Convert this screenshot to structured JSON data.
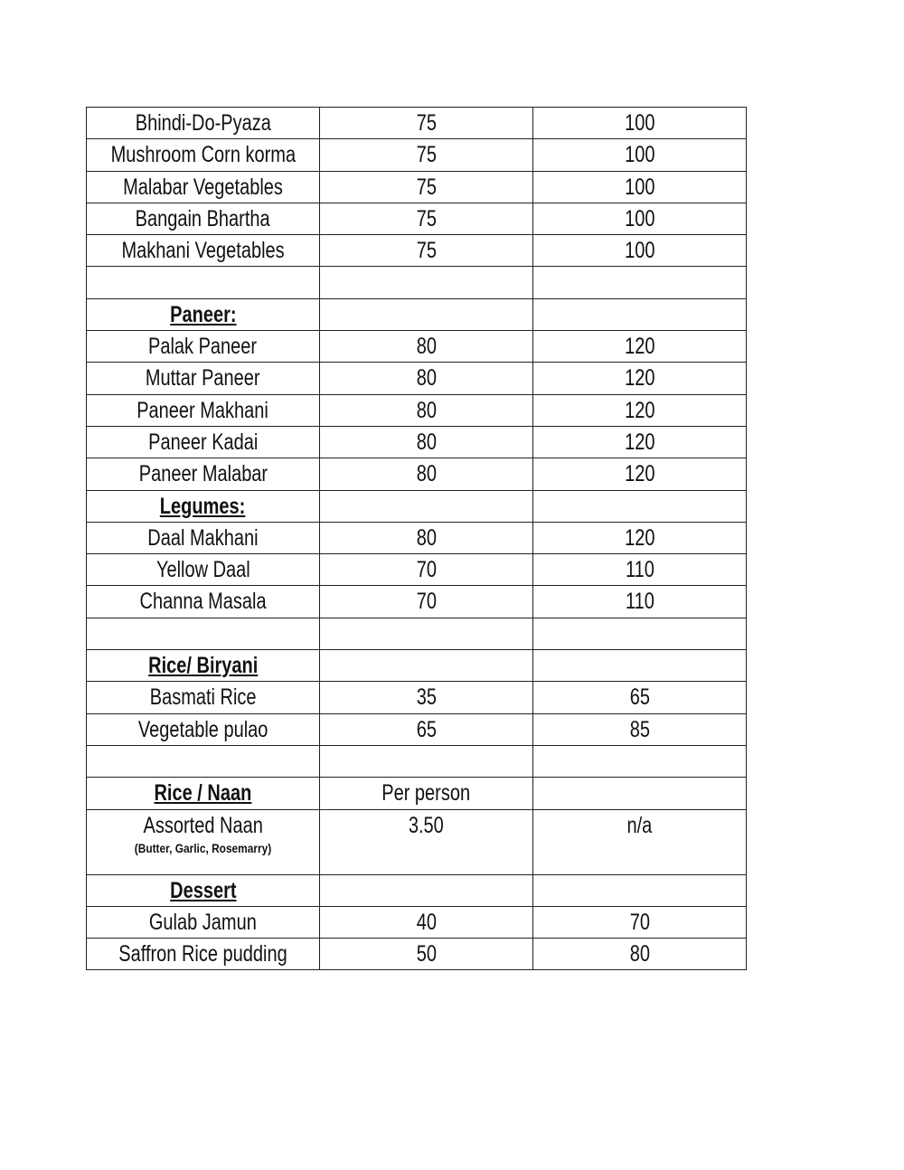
{
  "rows": [
    {
      "name": "Bhindi-Do-Pyaza",
      "c2": "75",
      "c3": "100"
    },
    {
      "name": "Mushroom Corn korma",
      "c2": "75",
      "c3": "100"
    },
    {
      "name": "Malabar Vegetables",
      "c2": "75",
      "c3": "100"
    },
    {
      "name": "Bangain Bhartha",
      "c2": "75",
      "c3": "100"
    },
    {
      "name": "Makhani Vegetables",
      "c2": "75",
      "c3": "100"
    },
    {
      "name": "",
      "c2": "",
      "c3": ""
    },
    {
      "name": "Paneer:",
      "c2": "",
      "c3": "",
      "heading": true
    },
    {
      "name": "Palak Paneer",
      "c2": "80",
      "c3": "120"
    },
    {
      "name": "Muttar Paneer",
      "c2": "80",
      "c3": "120"
    },
    {
      "name": "Paneer Makhani",
      "c2": "80",
      "c3": "120"
    },
    {
      "name": "Paneer Kadai",
      "c2": "80",
      "c3": "120"
    },
    {
      "name": "Paneer Malabar",
      "c2": "80",
      "c3": "120"
    },
    {
      "name": "Legumes:",
      "c2": "",
      "c3": "",
      "heading": true
    },
    {
      "name": "Daal Makhani",
      "c2": "80",
      "c3": "120"
    },
    {
      "name": "Yellow Daal",
      "c2": "70",
      "c3": "110"
    },
    {
      "name": "Channa Masala",
      "c2": "70",
      "c3": "110"
    },
    {
      "name": "",
      "c2": "",
      "c3": ""
    },
    {
      "name": "Rice/ Biryani",
      "c2": "",
      "c3": "",
      "heading": true
    },
    {
      "name": "Basmati Rice",
      "c2": "35",
      "c3": "65"
    },
    {
      "name": "Vegetable pulao",
      "c2": "65",
      "c3": "85"
    },
    {
      "name": "",
      "c2": "",
      "c3": ""
    },
    {
      "name": "Rice / Naan",
      "c2": "Per person",
      "c3": "",
      "heading": true
    },
    {
      "name": "Assorted Naan",
      "note": "(Butter, Garlic, Rosemarry)",
      "c2": "3.50",
      "c3": "n/a"
    },
    {
      "name": "Dessert",
      "c2": "",
      "c3": "",
      "heading": true
    },
    {
      "name": "Gulab Jamun",
      "c2": "40",
      "c3": "70"
    },
    {
      "name": "Saffron Rice pudding",
      "c2": "50",
      "c3": "80"
    }
  ]
}
